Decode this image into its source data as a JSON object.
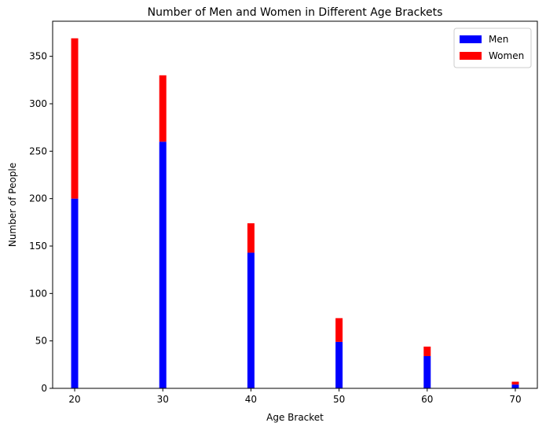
{
  "chart_data": {
    "type": "bar",
    "stacked": true,
    "title": "Number of Men and Women in Different Age Brackets",
    "xlabel": "Age Bracket",
    "ylabel": "Number of People",
    "x": [
      20,
      30,
      40,
      50,
      60,
      70
    ],
    "xticks": [
      20,
      30,
      40,
      50,
      60,
      70
    ],
    "yticks": [
      0,
      50,
      100,
      150,
      200,
      250,
      300,
      350
    ],
    "xlim": [
      17.5,
      72.5
    ],
    "ylim": [
      0,
      387
    ],
    "bar_width": 0.8,
    "series": [
      {
        "name": "Men",
        "color": "#0000ff",
        "values": [
          200,
          260,
          143,
          49,
          34,
          4
        ]
      },
      {
        "name": "Women",
        "color": "#ff0000",
        "values": [
          169,
          70,
          31,
          25,
          10,
          3
        ]
      }
    ],
    "legend_position": "top-right",
    "grid": false
  }
}
